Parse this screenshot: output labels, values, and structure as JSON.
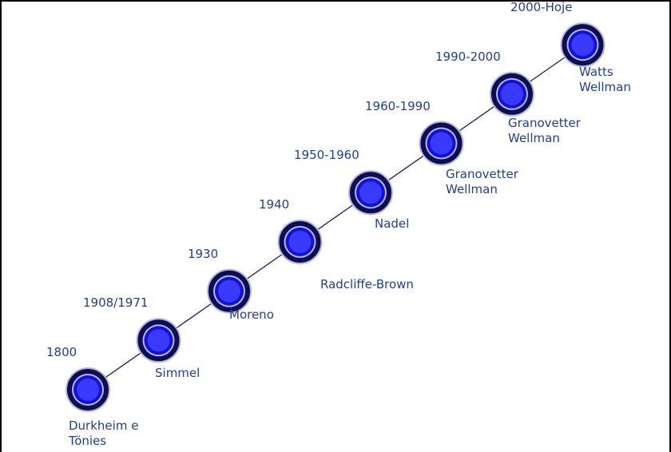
{
  "timeline": {
    "colors": {
      "line": "#1a1a6e",
      "node_outer": "#0d0d55",
      "node_ring": "#b8b8d8",
      "node_inner": "#1111dd",
      "node_core": "#3a3aff",
      "text": "#1f3f94"
    },
    "events": [
      {
        "period": "1800",
        "names": "Durkheim e\nTönies"
      },
      {
        "period": "1908/1971",
        "names": "Simmel"
      },
      {
        "period": "1930",
        "names": "Moreno"
      },
      {
        "period": "1940",
        "names": "Radcliffe-Brown"
      },
      {
        "period": "1950-1960",
        "names": "Nadel"
      },
      {
        "period": "1960-1990",
        "names": "Granovetter\nWellman"
      },
      {
        "period": "1990-2000",
        "names": "Granovetter\nWellman"
      },
      {
        "period": "2000-Hoje",
        "names": "Watts\nWellman"
      }
    ]
  }
}
